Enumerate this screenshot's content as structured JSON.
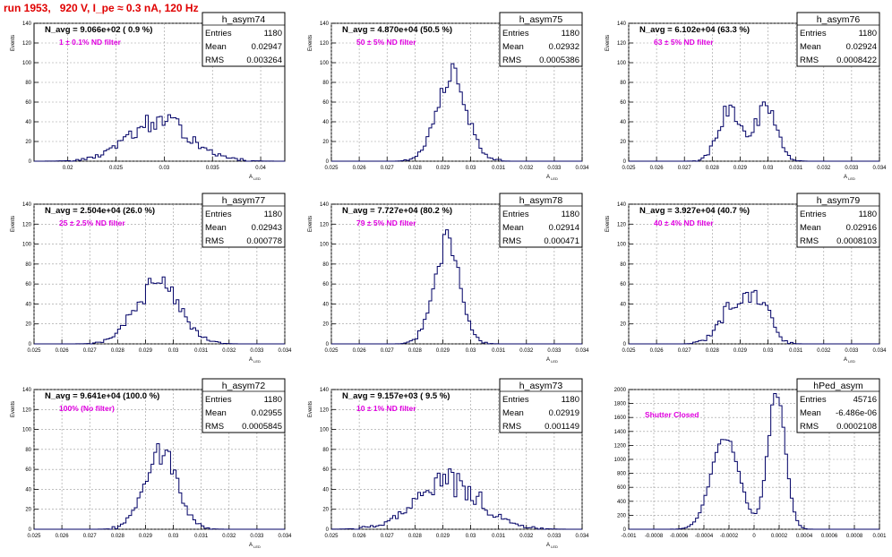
{
  "run_title": "run 1953,   920 V, I_pe ≈ 0.3 nA, 120 Hz",
  "stat_labels": {
    "entries": "Entries",
    "mean": "Mean",
    "rms": "RMS"
  },
  "chart_data": [
    {
      "type": "histogram",
      "name": "h_asym74",
      "ylabel": "Events",
      "xlabel": "A_LED",
      "navg": "N_avg = 9.066e+02 ( 0.9 %)",
      "filter": "1 ± 0.1% ND filter",
      "entries": "1180",
      "mean": "0.02947",
      "rms": "0.003264",
      "xlim": [
        0.0165,
        0.0425
      ],
      "ylim": [
        0,
        140
      ],
      "xticks": [
        "0.02",
        "0.025",
        "0.03",
        "0.035",
        "0.04"
      ],
      "xtick_values": [
        0.02,
        0.025,
        0.03,
        0.035,
        0.04
      ],
      "yticks": [
        "0",
        "20",
        "40",
        "60",
        "80",
        "100",
        "120",
        "140"
      ],
      "dist": {
        "peaks": [
          [
            0.0295,
            0.00326,
            1
          ]
        ],
        "peak": 40,
        "jitter": 0.25
      }
    },
    {
      "type": "histogram",
      "name": "h_asym75",
      "ylabel": "Events",
      "xlabel": "A_LED",
      "navg": "N_avg = 4.870e+04 (50.5 %)",
      "filter": "50 ± 5% ND filter",
      "entries": "1180",
      "mean": "0.02932",
      "rms": "0.0005386",
      "xlim": [
        0.025,
        0.034
      ],
      "ylim": [
        0,
        140
      ],
      "xticks": [
        "0.025",
        "0.026",
        "0.027",
        "0.028",
        "0.029",
        "0.03",
        "0.031",
        "0.032",
        "0.033",
        "0.034"
      ],
      "xtick_values": [
        0.025,
        0.026,
        0.027,
        0.028,
        0.029,
        0.03,
        0.031,
        0.032,
        0.033,
        0.034
      ],
      "yticks": [
        "0",
        "20",
        "40",
        "60",
        "80",
        "100",
        "120",
        "140"
      ],
      "dist": {
        "peaks": [
          [
            0.02932,
            0.00054,
            1
          ]
        ],
        "peak": 86,
        "jitter": 0.15
      }
    },
    {
      "type": "histogram",
      "name": "h_asym76",
      "ylabel": "Events",
      "xlabel": "A_LED",
      "navg": "N_avg = 6.102e+04 (63.3 %)",
      "filter": "63 ± 5% ND filter",
      "entries": "1180",
      "mean": "0.02924",
      "rms": "0.0008422",
      "xlim": [
        0.025,
        0.034
      ],
      "ylim": [
        0,
        140
      ],
      "xticks": [
        "0.025",
        "0.026",
        "0.027",
        "0.028",
        "0.029",
        "0.03",
        "0.031",
        "0.032",
        "0.033",
        "0.034"
      ],
      "xtick_values": [
        0.025,
        0.026,
        0.027,
        0.028,
        0.029,
        0.03,
        0.031,
        0.032,
        0.033,
        0.034
      ],
      "yticks": [
        "0",
        "20",
        "40",
        "60",
        "80",
        "100",
        "120",
        "140"
      ],
      "dist": {
        "peaks": [
          [
            0.0286,
            0.0004,
            0.9
          ],
          [
            0.0299,
            0.0004,
            1
          ]
        ],
        "peak": 55,
        "jitter": 0.2
      }
    },
    {
      "type": "histogram",
      "name": "h_asym77",
      "ylabel": "Events",
      "xlabel": "A_LED",
      "navg": "N_avg = 2.504e+04 (26.0 %)",
      "filter": "25 ± 2.5% ND filter",
      "entries": "1180",
      "mean": "0.02943",
      "rms": "0.000778",
      "xlim": [
        0.025,
        0.034
      ],
      "ylim": [
        0,
        140
      ],
      "xticks": [
        "0.025",
        "0.026",
        "0.027",
        "0.028",
        "0.029",
        "0.03",
        "0.031",
        "0.032",
        "0.033",
        "0.034"
      ],
      "xtick_values": [
        0.025,
        0.026,
        0.027,
        0.028,
        0.029,
        0.03,
        0.031,
        0.032,
        0.033,
        0.034
      ],
      "yticks": [
        "0",
        "20",
        "40",
        "60",
        "80",
        "100",
        "120",
        "140"
      ],
      "dist": {
        "peaks": [
          [
            0.02943,
            0.00078,
            1
          ]
        ],
        "peak": 60,
        "jitter": 0.2
      }
    },
    {
      "type": "histogram",
      "name": "h_asym78",
      "ylabel": "Events",
      "xlabel": "A_LED",
      "navg": "N_avg = 7.727e+04 (80.2 %)",
      "filter": "79 ± 5% ND filter",
      "entries": "1180",
      "mean": "0.02914",
      "rms": "0.000471",
      "xlim": [
        0.025,
        0.034
      ],
      "ylim": [
        0,
        140
      ],
      "xticks": [
        "0.025",
        "0.026",
        "0.027",
        "0.028",
        "0.029",
        "0.03",
        "0.031",
        "0.032",
        "0.033",
        "0.034"
      ],
      "xtick_values": [
        0.025,
        0.026,
        0.027,
        0.028,
        0.029,
        0.03,
        0.031,
        0.032,
        0.033,
        0.034
      ],
      "yticks": [
        "0",
        "20",
        "40",
        "60",
        "80",
        "100",
        "120",
        "140"
      ],
      "dist": {
        "peaks": [
          [
            0.02914,
            0.00047,
            1
          ]
        ],
        "peak": 101,
        "jitter": 0.15
      }
    },
    {
      "type": "histogram",
      "name": "h_asym79",
      "ylabel": "Events",
      "xlabel": "A_LED",
      "navg": "N_avg = 3.927e+04 (40.7 %)",
      "filter": "40 ± 4% ND filter",
      "entries": "1180",
      "mean": "0.02916",
      "rms": "0.0008103",
      "xlim": [
        0.025,
        0.034
      ],
      "ylim": [
        0,
        140
      ],
      "xticks": [
        "0.025",
        "0.026",
        "0.027",
        "0.028",
        "0.029",
        "0.03",
        "0.031",
        "0.032",
        "0.033",
        "0.034"
      ],
      "xtick_values": [
        0.025,
        0.026,
        0.027,
        0.028,
        0.029,
        0.03,
        0.031,
        0.032,
        0.033,
        0.034
      ],
      "yticks": [
        "0",
        "20",
        "40",
        "60",
        "80",
        "100",
        "120",
        "140"
      ],
      "dist": {
        "peaks": [
          [
            0.0288,
            0.0005,
            1
          ],
          [
            0.0297,
            0.0004,
            1
          ]
        ],
        "peak": 50,
        "jitter": 0.2
      }
    },
    {
      "type": "histogram",
      "name": "h_asym72",
      "ylabel": "Events",
      "xlabel": "A_LED",
      "navg": "N_avg = 9.641e+04 (100.0 %)",
      "filter": "100% (No filter)",
      "entries": "1180",
      "mean": "0.02955",
      "rms": "0.0005845",
      "xlim": [
        0.025,
        0.034
      ],
      "ylim": [
        0,
        140
      ],
      "xticks": [
        "0.025",
        "0.026",
        "0.027",
        "0.028",
        "0.029",
        "0.03",
        "0.031",
        "0.032",
        "0.033",
        "0.034"
      ],
      "xtick_values": [
        0.025,
        0.026,
        0.027,
        0.028,
        0.029,
        0.03,
        0.031,
        0.032,
        0.033,
        0.034
      ],
      "yticks": [
        "0",
        "20",
        "40",
        "60",
        "80",
        "100",
        "120",
        "140"
      ],
      "dist": {
        "peaks": [
          [
            0.02955,
            0.00058,
            1
          ]
        ],
        "peak": 77,
        "jitter": 0.15
      }
    },
    {
      "type": "histogram",
      "name": "h_asym73",
      "ylabel": "Events",
      "xlabel": "A_LED",
      "navg": "N_avg = 9.157e+03 ( 9.5 %)",
      "filter": "10 ± 1% ND filter",
      "entries": "1180",
      "mean": "0.02919",
      "rms": "0.001149",
      "xlim": [
        0.025,
        0.034
      ],
      "ylim": [
        0,
        140
      ],
      "xticks": [
        "0.025",
        "0.026",
        "0.027",
        "0.028",
        "0.029",
        "0.03",
        "0.031",
        "0.032",
        "0.033",
        "0.034"
      ],
      "xtick_values": [
        0.025,
        0.026,
        0.027,
        0.028,
        0.029,
        0.03,
        0.031,
        0.032,
        0.033,
        0.034
      ],
      "yticks": [
        "0",
        "20",
        "40",
        "60",
        "80",
        "100",
        "120",
        "140"
      ],
      "dist": {
        "peaks": [
          [
            0.02919,
            0.00115,
            1
          ]
        ],
        "peak": 48,
        "jitter": 0.3
      }
    },
    {
      "type": "histogram",
      "name": "hPed_asym",
      "ylabel": "",
      "xlabel": "",
      "navg": "",
      "filter": "Shutter Closed",
      "entries": "45716",
      "mean": "-6.486e-06",
      "rms": "0.0002108",
      "xlim": [
        -0.001,
        0.001
      ],
      "ylim": [
        0,
        2000
      ],
      "xticks": [
        "-0.001",
        "-0.0008",
        "-0.0006",
        "-0.0004",
        "-0.0002",
        "0",
        "0.0002",
        "0.0004",
        "0.0006",
        "0.0008",
        "0.001"
      ],
      "xtick_values": [
        -0.001,
        -0.0008,
        -0.0006,
        -0.0004,
        -0.0002,
        0,
        0.0002,
        0.0004,
        0.0006,
        0.0008,
        0.001
      ],
      "yticks": [
        "0",
        "200",
        "400",
        "600",
        "800",
        "1000",
        "1200",
        "1400",
        "1600",
        "1800",
        "2000"
      ],
      "dist": {
        "peaks": [
          [
            -0.00023,
            0.00011,
            0.68
          ],
          [
            0.00018,
            7e-05,
            1
          ]
        ],
        "peak": 1940,
        "jitter": 0.04
      }
    }
  ]
}
